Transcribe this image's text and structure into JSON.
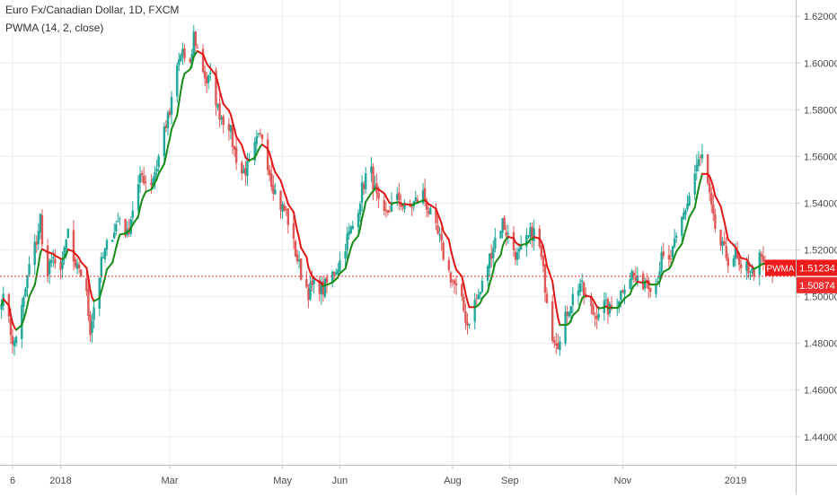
{
  "chart_data": {
    "type": "candlestick",
    "title": "Euro Fx/Canadian Dollar, 1D, FXCM",
    "indicator_label": "PWMA (14, 2, close)",
    "x_tick_labels": [
      "6",
      "2018",
      "Mar",
      "May",
      "Jun",
      "Aug",
      "Sep",
      "Nov",
      "2019"
    ],
    "y_tick_labels": [
      "1.62000",
      "1.60000",
      "1.58000",
      "1.56000",
      "1.54000",
      "1.52000",
      "1.50000",
      "1.48000",
      "1.46000",
      "1.44000"
    ],
    "y_ticks": [
      1.62,
      1.6,
      1.58,
      1.56,
      1.54,
      1.52,
      1.5,
      1.48,
      1.46,
      1.44
    ],
    "ylim": [
      1.428,
      1.627
    ],
    "grid": true,
    "last_price": {
      "label": "1.50874",
      "value": 1.50874,
      "color": "#ef2b2b"
    },
    "indicator_badge": {
      "name": "PWMA",
      "label": "1.51234",
      "value": 1.51234,
      "color": "#ef1a1a"
    },
    "candle_up_color": "#21a89a",
    "candle_down_color": "#e05757",
    "pwma_up_color": "#168c16",
    "pwma_down_color": "#e01717",
    "price_path": [
      [
        "2017-11-30",
        1.5
      ],
      [
        "2017-12-04",
        1.493
      ],
      [
        "2017-12-06",
        1.478
      ],
      [
        "2017-12-08",
        1.484
      ],
      [
        "2017-12-12",
        1.498
      ],
      [
        "2017-12-15",
        1.513
      ],
      [
        "2017-12-19",
        1.524
      ],
      [
        "2017-12-21",
        1.534
      ],
      [
        "2017-12-23",
        1.508
      ],
      [
        "2017-12-27",
        1.516
      ],
      [
        "2017-12-30",
        1.51
      ],
      [
        "2018-01-03",
        1.518
      ],
      [
        "2018-01-05",
        1.528
      ],
      [
        "2018-01-09",
        1.51
      ],
      [
        "2018-01-11",
        1.513
      ],
      [
        "2018-01-15",
        1.5
      ],
      [
        "2018-01-17",
        1.486
      ],
      [
        "2018-01-19",
        1.496
      ],
      [
        "2018-01-23",
        1.514
      ],
      [
        "2018-01-27",
        1.524
      ],
      [
        "2018-02-02",
        1.534
      ],
      [
        "2018-02-06",
        1.526
      ],
      [
        "2018-02-10",
        1.542
      ],
      [
        "2018-02-14",
        1.552
      ],
      [
        "2018-02-18",
        1.547
      ],
      [
        "2018-02-22",
        1.556
      ],
      [
        "2018-02-26",
        1.572
      ],
      [
        "2018-03-01",
        1.578
      ],
      [
        "2018-03-05",
        1.598
      ],
      [
        "2018-03-08",
        1.606
      ],
      [
        "2018-03-11",
        1.59
      ],
      [
        "2018-03-14",
        1.612
      ],
      [
        "2018-03-18",
        1.6
      ],
      [
        "2018-03-21",
        1.592
      ],
      [
        "2018-03-24",
        1.594
      ],
      [
        "2018-03-27",
        1.58
      ],
      [
        "2018-03-30",
        1.576
      ],
      [
        "2018-04-02",
        1.574
      ],
      [
        "2018-04-05",
        1.562
      ],
      [
        "2018-04-09",
        1.553
      ],
      [
        "2018-04-13",
        1.556
      ],
      [
        "2018-04-17",
        1.566
      ],
      [
        "2018-04-20",
        1.569
      ],
      [
        "2018-04-25",
        1.55
      ],
      [
        "2018-04-29",
        1.54
      ],
      [
        "2018-05-03",
        1.536
      ],
      [
        "2018-05-07",
        1.522
      ],
      [
        "2018-05-11",
        1.51
      ],
      [
        "2018-05-15",
        1.502
      ],
      [
        "2018-05-19",
        1.506
      ],
      [
        "2018-05-23",
        1.503
      ],
      [
        "2018-05-27",
        1.508
      ],
      [
        "2018-06-01",
        1.515
      ],
      [
        "2018-06-05",
        1.525
      ],
      [
        "2018-06-09",
        1.532
      ],
      [
        "2018-06-13",
        1.546
      ],
      [
        "2018-06-17",
        1.557
      ],
      [
        "2018-06-20",
        1.545
      ],
      [
        "2018-06-24",
        1.532
      ],
      [
        "2018-06-28",
        1.538
      ],
      [
        "2018-07-03",
        1.542
      ],
      [
        "2018-07-07",
        1.536
      ],
      [
        "2018-07-11",
        1.54
      ],
      [
        "2018-07-16",
        1.544
      ],
      [
        "2018-07-21",
        1.532
      ],
      [
        "2018-07-25",
        1.524
      ],
      [
        "2018-07-29",
        1.512
      ],
      [
        "2018-08-02",
        1.505
      ],
      [
        "2018-08-06",
        1.497
      ],
      [
        "2018-08-09",
        1.488
      ],
      [
        "2018-08-12",
        1.496
      ],
      [
        "2018-08-16",
        1.502
      ],
      [
        "2018-08-20",
        1.514
      ],
      [
        "2018-08-24",
        1.525
      ],
      [
        "2018-08-28",
        1.532
      ],
      [
        "2018-09-01",
        1.524
      ],
      [
        "2018-09-05",
        1.517
      ],
      [
        "2018-09-09",
        1.522
      ],
      [
        "2018-09-13",
        1.528
      ],
      [
        "2018-09-16",
        1.526
      ],
      [
        "2018-09-20",
        1.505
      ],
      [
        "2018-09-24",
        1.484
      ],
      [
        "2018-09-28",
        1.48
      ],
      [
        "2018-10-02",
        1.494
      ],
      [
        "2018-10-05",
        1.5
      ],
      [
        "2018-10-09",
        1.506
      ],
      [
        "2018-10-13",
        1.496
      ],
      [
        "2018-10-17",
        1.492
      ],
      [
        "2018-10-21",
        1.497
      ],
      [
        "2018-10-25",
        1.494
      ],
      [
        "2018-10-29",
        1.498
      ],
      [
        "2018-11-02",
        1.506
      ],
      [
        "2018-11-06",
        1.51
      ],
      [
        "2018-11-10",
        1.504
      ],
      [
        "2018-11-14",
        1.508
      ],
      [
        "2018-11-18",
        1.503
      ],
      [
        "2018-11-22",
        1.516
      ],
      [
        "2018-11-26",
        1.514
      ],
      [
        "2018-11-30",
        1.524
      ],
      [
        "2018-12-03",
        1.533
      ],
      [
        "2018-12-07",
        1.543
      ],
      [
        "2018-12-11",
        1.556
      ],
      [
        "2018-12-14",
        1.56
      ],
      [
        "2018-12-17",
        1.547
      ],
      [
        "2018-12-20",
        1.532
      ],
      [
        "2018-12-24",
        1.522
      ],
      [
        "2018-12-28",
        1.516
      ],
      [
        "2019-01-01",
        1.518
      ],
      [
        "2019-01-04",
        1.509
      ],
      [
        "2019-01-07",
        1.513
      ],
      [
        "2019-01-10",
        1.51
      ],
      [
        "2019-01-14",
        1.516
      ],
      [
        "2019-01-18",
        1.512
      ],
      [
        "2019-01-22",
        1.509
      ]
    ]
  }
}
